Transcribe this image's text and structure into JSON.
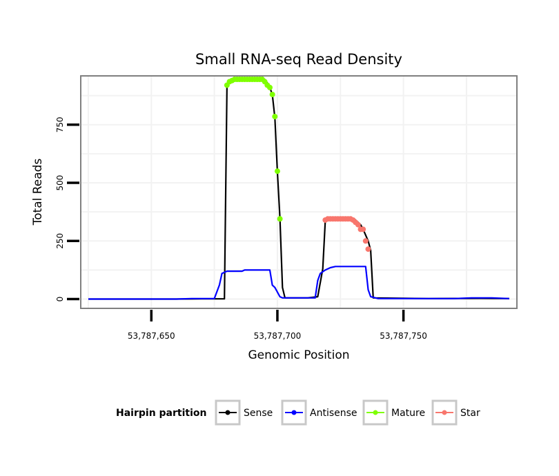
{
  "chart_data": {
    "type": "line",
    "title": "Small RNA-seq Read Density",
    "xlabel": "Genomic Position",
    "ylabel": "Total Reads",
    "xlim": [
      53787622,
      53787795
    ],
    "ylim": [
      -40,
      960
    ],
    "x_ticks": [
      53787650,
      53787700,
      53787750
    ],
    "x_tick_labels": [
      "53,787,650",
      "53,787,700",
      "53,787,750"
    ],
    "y_ticks": [
      0,
      250,
      500,
      750
    ],
    "y_tick_labels": [
      "0",
      "250",
      "500",
      "750"
    ],
    "grid": true,
    "legend_title": "Hairpin partition",
    "legend_position": "bottom",
    "series": [
      {
        "name": "Sense",
        "color": "#000000",
        "style": "line",
        "points": [
          [
            53787625,
            0
          ],
          [
            53787640,
            0
          ],
          [
            53787660,
            0
          ],
          [
            53787670,
            1
          ],
          [
            53787679,
            1
          ],
          [
            53787680,
            920
          ],
          [
            53787681,
            940
          ],
          [
            53787682,
            945
          ],
          [
            53787695,
            945
          ],
          [
            53787696,
            930
          ],
          [
            53787697,
            910
          ],
          [
            53787698,
            880
          ],
          [
            53787699,
            780
          ],
          [
            53787700,
            550
          ],
          [
            53787701,
            350
          ],
          [
            53787702,
            50
          ],
          [
            53787703,
            5
          ],
          [
            53787712,
            5
          ],
          [
            53787716,
            10
          ],
          [
            53787718,
            130
          ],
          [
            53787719,
            340
          ],
          [
            53787720,
            345
          ],
          [
            53787730,
            345
          ],
          [
            53787731,
            340
          ],
          [
            53787733,
            320
          ],
          [
            53787734,
            300
          ],
          [
            53787736,
            250
          ],
          [
            53787737,
            210
          ],
          [
            53787738,
            5
          ],
          [
            53787760,
            2
          ],
          [
            53787780,
            3
          ],
          [
            53787792,
            2
          ]
        ]
      },
      {
        "name": "Antisense",
        "color": "#0000ff",
        "style": "line",
        "points": [
          [
            53787625,
            0
          ],
          [
            53787660,
            0
          ],
          [
            53787666,
            2
          ],
          [
            53787672,
            2
          ],
          [
            53787675,
            2
          ],
          [
            53787677,
            60
          ],
          [
            53787678,
            110
          ],
          [
            53787680,
            120
          ],
          [
            53787686,
            120
          ],
          [
            53787687,
            125
          ],
          [
            53787697,
            125
          ],
          [
            53787698,
            60
          ],
          [
            53787699,
            50
          ],
          [
            53787701,
            10
          ],
          [
            53787702,
            5
          ],
          [
            53787712,
            5
          ],
          [
            53787715,
            5
          ],
          [
            53787716,
            80
          ],
          [
            53787717,
            110
          ],
          [
            53787719,
            125
          ],
          [
            53787721,
            135
          ],
          [
            53787723,
            140
          ],
          [
            53787735,
            140
          ],
          [
            53787736,
            40
          ],
          [
            53787737,
            10
          ],
          [
            53787740,
            2
          ],
          [
            53787770,
            2
          ],
          [
            53787777,
            5
          ],
          [
            53787785,
            5
          ],
          [
            53787792,
            2
          ]
        ]
      },
      {
        "name": "Mature",
        "color": "#7fff00",
        "style": "points",
        "points": [
          [
            53787680,
            920
          ],
          [
            53787681,
            935
          ],
          [
            53787682,
            940
          ],
          [
            53787683,
            945
          ],
          [
            53787684,
            945
          ],
          [
            53787685,
            945
          ],
          [
            53787686,
            945
          ],
          [
            53787687,
            945
          ],
          [
            53787688,
            945
          ],
          [
            53787689,
            945
          ],
          [
            53787690,
            945
          ],
          [
            53787691,
            945
          ],
          [
            53787692,
            945
          ],
          [
            53787693,
            945
          ],
          [
            53787694,
            945
          ],
          [
            53787695,
            935
          ],
          [
            53787696,
            920
          ],
          [
            53787697,
            910
          ],
          [
            53787698,
            880
          ],
          [
            53787699,
            785
          ],
          [
            53787700,
            550
          ],
          [
            53787701,
            345
          ]
        ]
      },
      {
        "name": "Star",
        "color": "#f8766d",
        "style": "points",
        "points": [
          [
            53787719,
            340
          ],
          [
            53787720,
            345
          ],
          [
            53787721,
            345
          ],
          [
            53787722,
            345
          ],
          [
            53787723,
            345
          ],
          [
            53787724,
            345
          ],
          [
            53787725,
            345
          ],
          [
            53787726,
            345
          ],
          [
            53787727,
            345
          ],
          [
            53787728,
            345
          ],
          [
            53787729,
            345
          ],
          [
            53787730,
            340
          ],
          [
            53787731,
            330
          ],
          [
            53787732,
            320
          ],
          [
            53787733,
            300
          ],
          [
            53787734,
            300
          ],
          [
            53787735,
            250
          ],
          [
            53787736,
            215
          ]
        ]
      }
    ]
  }
}
